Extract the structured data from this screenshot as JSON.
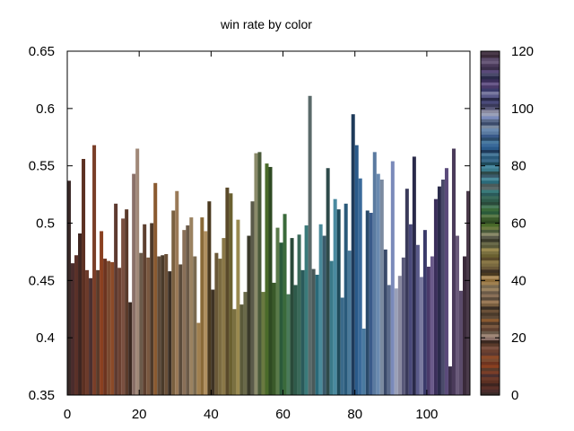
{
  "chart_data": {
    "type": "bar",
    "title": "win rate by color",
    "xlabel": "",
    "ylabel": "",
    "xlim": [
      0,
      112
    ],
    "ylim": [
      0.35,
      0.65
    ],
    "xticks": [
      0,
      20,
      40,
      60,
      80,
      100
    ],
    "yticks": [
      0.35,
      0.4,
      0.45,
      0.5,
      0.55,
      0.6,
      0.65
    ],
    "ytick_labels": [
      "0.35",
      "0.4",
      "0.45",
      "0.5",
      "0.55",
      "0.6",
      "0.65"
    ],
    "colorbar": {
      "range": [
        0,
        120
      ],
      "ticks": [
        0,
        20,
        40,
        60,
        80,
        100,
        120
      ]
    },
    "grid": false,
    "legend": "none",
    "x": [
      0,
      1,
      2,
      3,
      4,
      5,
      6,
      7,
      8,
      9,
      10,
      11,
      12,
      13,
      14,
      15,
      16,
      17,
      18,
      19,
      20,
      21,
      22,
      23,
      24,
      25,
      26,
      27,
      28,
      29,
      30,
      31,
      32,
      33,
      34,
      35,
      36,
      37,
      38,
      39,
      40,
      41,
      42,
      43,
      44,
      45,
      46,
      47,
      48,
      49,
      50,
      51,
      52,
      53,
      54,
      55,
      56,
      57,
      58,
      59,
      60,
      61,
      62,
      63,
      64,
      65,
      66,
      67,
      68,
      69,
      70,
      71,
      72,
      73,
      74,
      75,
      76,
      77,
      78,
      79,
      80,
      81,
      82,
      83,
      84,
      85,
      86,
      87,
      88,
      89,
      90,
      91,
      92,
      93,
      94,
      95,
      96,
      97,
      98,
      99,
      100,
      101,
      102,
      103,
      104,
      105,
      106,
      107,
      108,
      109,
      110,
      111
    ],
    "values": [
      0.537,
      0.465,
      0.472,
      0.491,
      0.556,
      0.459,
      0.452,
      0.568,
      0.459,
      0.493,
      0.469,
      0.467,
      0.466,
      0.517,
      0.461,
      0.504,
      0.512,
      0.431,
      0.543,
      0.565,
      0.474,
      0.499,
      0.47,
      0.5,
      0.535,
      0.471,
      0.472,
      0.473,
      0.458,
      0.511,
      0.528,
      0.464,
      0.494,
      0.498,
      0.505,
      0.471,
      0.413,
      0.505,
      0.493,
      0.519,
      0.442,
      0.474,
      0.469,
      0.487,
      0.531,
      0.526,
      0.425,
      0.503,
      0.429,
      0.44,
      0.489,
      0.519,
      0.561,
      0.562,
      0.44,
      0.552,
      0.549,
      0.448,
      0.496,
      0.483,
      0.508,
      0.438,
      0.487,
      0.446,
      0.49,
      0.459,
      0.498,
      0.611,
      0.46,
      0.455,
      0.499,
      0.489,
      0.548,
      0.467,
      0.521,
      0.512,
      0.435,
      0.517,
      0.476,
      0.595,
      0.568,
      0.539,
      0.408,
      0.511,
      0.509,
      0.562,
      0.543,
      0.538,
      0.477,
      0.446,
      0.554,
      0.443,
      0.454,
      0.47,
      0.53,
      0.499,
      0.558,
      0.481,
      0.453,
      0.494,
      0.462,
      0.471,
      0.521,
      0.532,
      0.538,
      0.548,
      0.375,
      0.565,
      0.489,
      0.441,
      0.471,
      0.528
    ],
    "colors": [
      "#3a2a28",
      "#4a2c2c",
      "#5a3028",
      "#3e2520",
      "#5c3022",
      "#6b3a2a",
      "#4b3030",
      "#7a3e28",
      "#5a3a2a",
      "#8a4020",
      "#6d3420",
      "#7a4a30",
      "#8b4a28",
      "#5e3a30",
      "#6b4030",
      "#7a5040",
      "#5a3a2a",
      "#3a2820",
      "#8a7068",
      "#a08878",
      "#6b5a4a",
      "#5e4030",
      "#7a5840",
      "#4e3a2a",
      "#8a5a30",
      "#5e4a38",
      "#4a3a2a",
      "#6a5038",
      "#3a2e24",
      "#7a6040",
      "#9a7a58",
      "#5a4a3a",
      "#8a7058",
      "#6b5a48",
      "#9a8260",
      "#7a6a50",
      "#a08050",
      "#8a6a38",
      "#b09060",
      "#4a3a20",
      "#3e3224",
      "#6a5838",
      "#7a6a40",
      "#8a7848",
      "#5a4a2a",
      "#6a6030",
      "#7a7040",
      "#9a8a50",
      "#5a5a3a",
      "#6a6a4a",
      "#3a3a2a",
      "#5a5a4a",
      "#8a8a6a",
      "#4a5a3a",
      "#6a7a40",
      "#4a6a2a",
      "#2e4a22",
      "#3a5a2a",
      "#5a7a4a",
      "#2a5a3a",
      "#3a6a3a",
      "#4a7a5a",
      "#2a4a3a",
      "#2e5a4a",
      "#3a6a5a",
      "#2a5a5a",
      "#3a7a7a",
      "#5a6a6a",
      "#4a5a5a",
      "#2a6a7a",
      "#4a8a9a",
      "#3a5a6a",
      "#2e4a4a",
      "#3a7a8a",
      "#4a8aa0",
      "#1e4a5a",
      "#3a6a8a",
      "#2a5a7a",
      "#4a7a9a",
      "#1e3a5a",
      "#2a5a8a",
      "#3a6a9a",
      "#4a7aa0",
      "#2a4a6a",
      "#3a5a8a",
      "#5a7aa0",
      "#6a8ab0",
      "#7a8aa0",
      "#3a4a6a",
      "#5a6a8a",
      "#7a8aba",
      "#9aa0b8",
      "#8a8aa0",
      "#5a5a7a",
      "#3a3a5a",
      "#4a4a7a",
      "#2a2a4a",
      "#5a5a8a",
      "#7a7aa0",
      "#3a3a6a",
      "#4a3a6a",
      "#6a5a8a",
      "#3a2e5a",
      "#2a2a4a",
      "#4a4a6a",
      "#5a4a7a",
      "#3a2e4a",
      "#4a3a5a",
      "#6a5a7a",
      "#5a4a6a",
      "#3a2a3a",
      "#4a3a4a"
    ]
  }
}
